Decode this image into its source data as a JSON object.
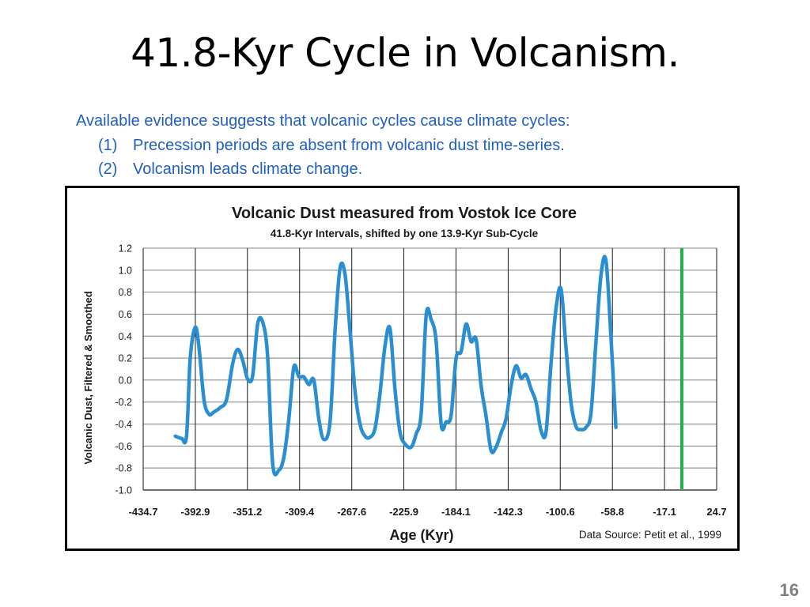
{
  "slide": {
    "title": "41.8-Kyr Cycle in Volcanism.",
    "intro": "Available evidence suggests that volcanic cycles cause climate cycles:",
    "points": [
      {
        "num": "(1)",
        "text": "Precession periods are absent from volcanic dust time-series."
      },
      {
        "num": "(2)",
        "text": "Volcanism leads climate change."
      }
    ],
    "page_number": "16"
  },
  "chart_data": {
    "type": "line",
    "title": "Volcanic Dust measured from Vostok Ice Core",
    "subtitle": "41.8-Kyr Intervals, shifted by one 13.9-Kyr Sub-Cycle",
    "xlabel": "Age (Kyr)",
    "ylabel": "Volcanic Dust, Filtered & Smoothed",
    "source": "Data Source:  Petit et al., 1999",
    "xlim": [
      -434.7,
      24.7
    ],
    "ylim": [
      -1.0,
      1.2
    ],
    "x_ticks": [
      -434.7,
      -392.9,
      -351.2,
      -309.4,
      -267.6,
      -225.9,
      -184.1,
      -142.3,
      -100.6,
      -58.8,
      -17.1,
      24.7
    ],
    "x_tick_labels": [
      "-434.7",
      "-392.9",
      "-351.2",
      "-309.4",
      "-267.6",
      "-225.9",
      "-184.1",
      "-142.3",
      "-100.6",
      "-58.8",
      "-17.1",
      "24.7"
    ],
    "y_ticks": [
      -1.0,
      -0.8,
      -0.6,
      -0.4,
      -0.2,
      0.0,
      0.2,
      0.4,
      0.6,
      0.8,
      1.0,
      1.2
    ],
    "y_tick_labels": [
      "-1.0",
      "-0.8",
      "-0.6",
      "-0.4",
      "-0.2",
      "0.0",
      "0.2",
      "0.4",
      "0.6",
      "0.8",
      "1.0",
      "1.2"
    ],
    "grid": true,
    "marker_line": {
      "x": -3.2,
      "color": "#22b04b"
    },
    "series": [
      {
        "color": "#2a8fd0",
        "points": [
          [
            -409,
            -0.51
          ],
          [
            -404,
            -0.53
          ],
          [
            -400,
            -0.51
          ],
          [
            -397,
            0.2
          ],
          [
            -393,
            0.48
          ],
          [
            -390,
            0.3
          ],
          [
            -386,
            -0.18
          ],
          [
            -382,
            -0.31
          ],
          [
            -378,
            -0.29
          ],
          [
            -373,
            -0.25
          ],
          [
            -368,
            -0.18
          ],
          [
            -363,
            0.15
          ],
          [
            -359,
            0.28
          ],
          [
            -355,
            0.18
          ],
          [
            -351,
            0.01
          ],
          [
            -347,
            0.04
          ],
          [
            -343,
            0.51
          ],
          [
            -339,
            0.53
          ],
          [
            -335,
            0.22
          ],
          [
            -331,
            -0.76
          ],
          [
            -326,
            -0.82
          ],
          [
            -322,
            -0.7
          ],
          [
            -318,
            -0.35
          ],
          [
            -314,
            0.12
          ],
          [
            -310,
            0.03
          ],
          [
            -306,
            0.03
          ],
          [
            -302,
            -0.04
          ],
          [
            -298,
            0.0
          ],
          [
            -294,
            -0.35
          ],
          [
            -290,
            -0.54
          ],
          [
            -285,
            -0.38
          ],
          [
            -281,
            0.45
          ],
          [
            -277,
            1.02
          ],
          [
            -273,
            0.96
          ],
          [
            -269,
            0.45
          ],
          [
            -265,
            -0.1
          ],
          [
            -261,
            -0.4
          ],
          [
            -257,
            -0.51
          ],
          [
            -253,
            -0.52
          ],
          [
            -249,
            -0.44
          ],
          [
            -245,
            -0.12
          ],
          [
            -241,
            0.31
          ],
          [
            -237,
            0.47
          ],
          [
            -233,
            -0.08
          ],
          [
            -229,
            -0.47
          ],
          [
            -225,
            -0.58
          ],
          [
            -220,
            -0.61
          ],
          [
            -216,
            -0.49
          ],
          [
            -212,
            -0.3
          ],
          [
            -208,
            0.59
          ],
          [
            -204,
            0.55
          ],
          [
            -200,
            0.35
          ],
          [
            -196,
            -0.4
          ],
          [
            -192,
            -0.38
          ],
          [
            -188,
            -0.32
          ],
          [
            -184,
            0.2
          ],
          [
            -180,
            0.26
          ],
          [
            -176,
            0.51
          ],
          [
            -172,
            0.35
          ],
          [
            -168,
            0.37
          ],
          [
            -164,
            -0.05
          ],
          [
            -160,
            -0.33
          ],
          [
            -156,
            -0.64
          ],
          [
            -152,
            -0.61
          ],
          [
            -148,
            -0.48
          ],
          [
            -144,
            -0.35
          ],
          [
            -140,
            -0.05
          ],
          [
            -136,
            0.13
          ],
          [
            -132,
            0.02
          ],
          [
            -128,
            0.05
          ],
          [
            -124,
            -0.08
          ],
          [
            -120,
            -0.2
          ],
          [
            -116,
            -0.46
          ],
          [
            -112,
            -0.47
          ],
          [
            -108,
            0.15
          ],
          [
            -104,
            0.65
          ],
          [
            -100,
            0.83
          ],
          [
            -96,
            0.3
          ],
          [
            -92,
            -0.2
          ],
          [
            -88,
            -0.42
          ],
          [
            -84,
            -0.45
          ],
          [
            -80,
            -0.43
          ],
          [
            -76,
            -0.3
          ],
          [
            -72,
            0.35
          ],
          [
            -68,
            0.95
          ],
          [
            -64,
            1.09
          ],
          [
            -60,
            0.4
          ],
          [
            -56,
            -0.43
          ]
        ]
      }
    ]
  }
}
